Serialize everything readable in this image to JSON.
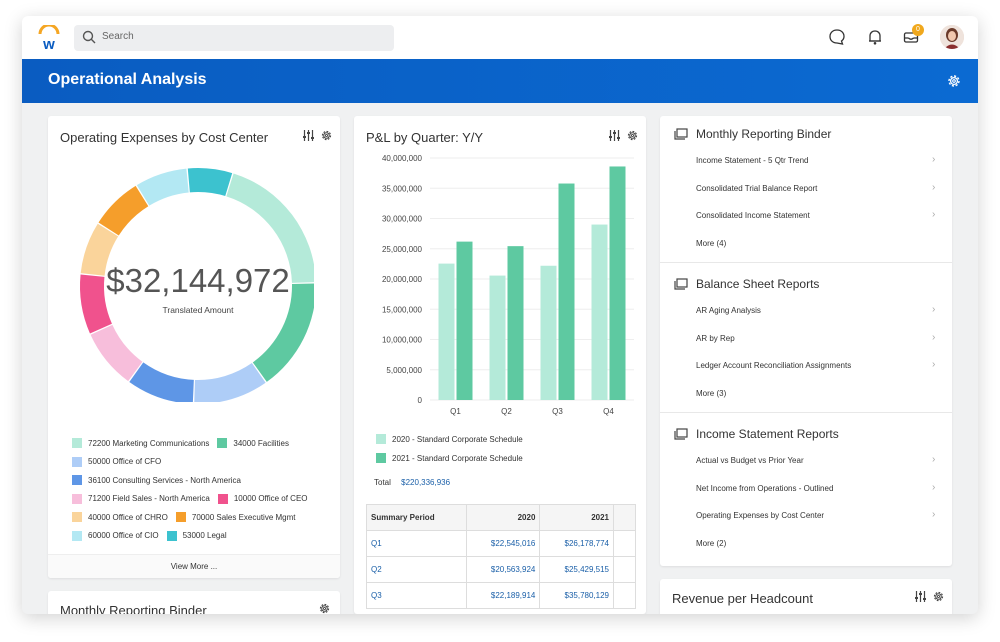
{
  "topbar": {
    "search_placeholder": "Search",
    "inbox_count": "0"
  },
  "page": {
    "title": "Operational Analysis"
  },
  "opex_card": {
    "title": "Operating Expenses by Cost Center",
    "center_amount": "$32,144,972",
    "center_label": "Translated Amount",
    "view_more": "View More ...",
    "chart_data": {
      "type": "pie",
      "title": "Operating Expenses by Cost Center",
      "total": 32144972,
      "slices": [
        {
          "label": "72200 Marketing Communications",
          "share": 0.19,
          "color": "#b4ead9"
        },
        {
          "label": "34000 Facilities",
          "share": 0.15,
          "color": "#5ec9a1"
        },
        {
          "label": "50000 Office of CFO",
          "share": 0.1,
          "color": "#aecdf7"
        },
        {
          "label": "36100 Consulting Services - North America",
          "share": 0.09,
          "color": "#5e96e6"
        },
        {
          "label": "71200 Field Sales - North America",
          "share": 0.08,
          "color": "#f7bedb"
        },
        {
          "label": "10000 Office of CEO",
          "share": 0.08,
          "color": "#f0528d"
        },
        {
          "label": "40000 Office of CHRO",
          "share": 0.07,
          "color": "#fad49b"
        },
        {
          "label": "70000 Sales Executive Mgmt",
          "share": 0.07,
          "color": "#f59e2b"
        },
        {
          "label": "60000 Office of CIO",
          "share": 0.07,
          "color": "#b3e8f3"
        },
        {
          "label": "53000 Legal",
          "share": 0.06,
          "color": "#3cc2cf"
        }
      ]
    }
  },
  "pl_card": {
    "title": "P&L by Quarter: Y/Y",
    "total_label": "Total",
    "total_value": "$220,336,936",
    "chart_data": {
      "type": "bar",
      "title": "P&L by Quarter: Y/Y",
      "categories": [
        "Q1",
        "Q2",
        "Q3",
        "Q4"
      ],
      "ylim": [
        0,
        40000000
      ],
      "yticks": [
        "0",
        "5,000,000",
        "10,000,000",
        "15,000,000",
        "20,000,000",
        "25,000,000",
        "30,000,000",
        "35,000,000",
        "40,000,000"
      ],
      "series": [
        {
          "name": "2020 - Standard Corporate Schedule",
          "values": [
            22545016,
            20563924,
            22189914,
            29000000
          ],
          "color": "#b4ead9"
        },
        {
          "name": "2021 - Standard Corporate Schedule",
          "values": [
            26178774,
            25429515,
            35780129,
            38600000
          ],
          "color": "#5ec9a1"
        }
      ]
    },
    "table": {
      "headers": [
        "Summary Period",
        "2020",
        "2021"
      ],
      "rows": [
        [
          "Q1",
          "$22,545,016",
          "$26,178,774"
        ],
        [
          "Q2",
          "$20,563,924",
          "$25,429,515"
        ],
        [
          "Q3",
          "$22,189,914",
          "$35,780,129"
        ]
      ]
    }
  },
  "reports_card": {
    "sections": [
      {
        "title": "Monthly Reporting Binder",
        "links": [
          "Income Statement - 5 Qtr Trend",
          "Consolidated Trial Balance Report",
          "Consolidated Income Statement"
        ],
        "more": "More (4)"
      },
      {
        "title": "Balance Sheet Reports",
        "links": [
          "AR Aging Analysis",
          "AR by Rep",
          "Ledger Account Reconciliation Assignments"
        ],
        "more": "More (3)"
      },
      {
        "title": "Income Statement Reports",
        "links": [
          "Actual vs Budget vs Prior Year",
          "Net Income from Operations - Outlined",
          "Operating Expenses by Cost Center"
        ],
        "more": "More (2)"
      }
    ]
  },
  "bottom_left_card": {
    "title": "Monthly Reporting Binder"
  },
  "bottom_right_card": {
    "title": "Revenue per Headcount"
  }
}
